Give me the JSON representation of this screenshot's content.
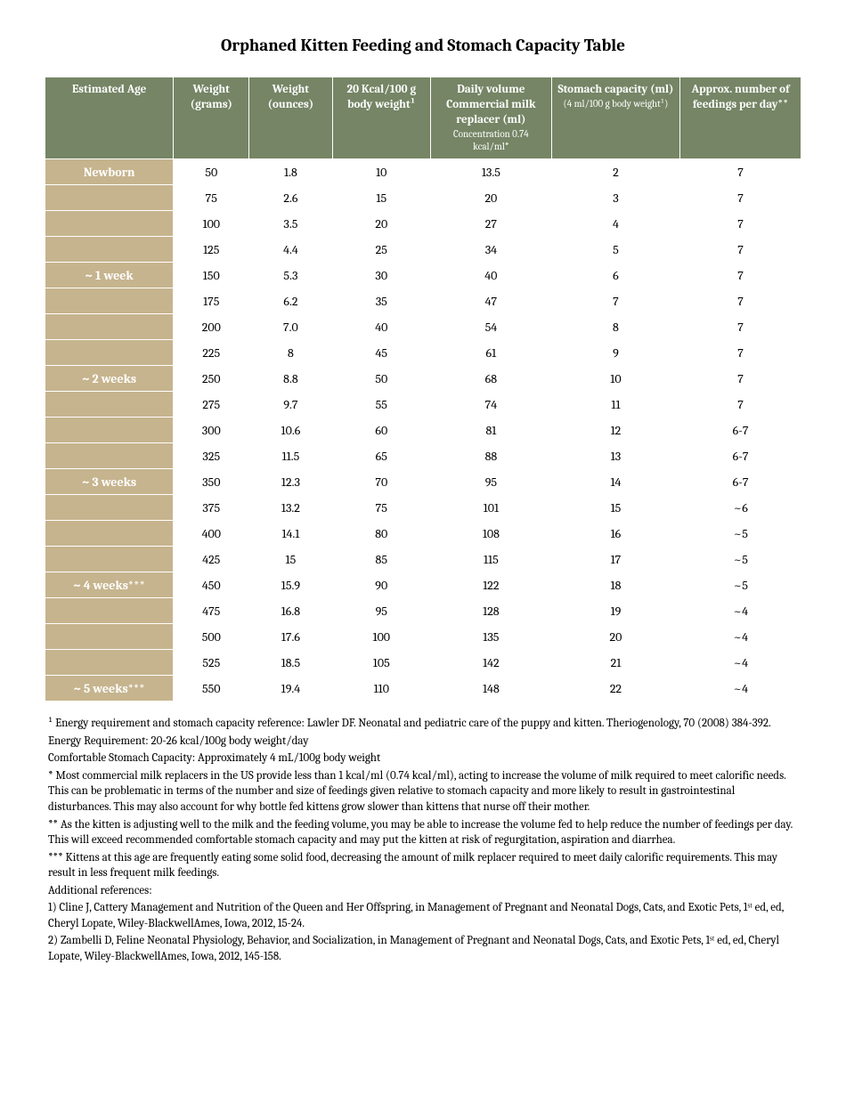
{
  "title": "Orphaned Kitten Feeding and Stomach Capacity Table",
  "colors": {
    "header_bg": "#758565",
    "header_text": "#ffffff",
    "age_bg": "#c6b48e",
    "age_text": "#ffffff",
    "body_bg": "#ffffff",
    "body_text": "#000000"
  },
  "columns": [
    {
      "key": "age",
      "label": "Estimated Age",
      "sub": ""
    },
    {
      "key": "wg",
      "label": "Weight (grams)",
      "sub": ""
    },
    {
      "key": "wo",
      "label": "Weight (ounces)",
      "sub": ""
    },
    {
      "key": "kcal",
      "label": "20 Kcal/100 g body weight¹",
      "sub": ""
    },
    {
      "key": "dv",
      "label": "Daily volume Commercial milk replacer (ml)",
      "sub": "Concentration 0.74 kcal/ml*"
    },
    {
      "key": "sc",
      "label": "Stomach capacity (ml)",
      "sub": "(4 ml/100 g body weight¹)"
    },
    {
      "key": "fd",
      "label": "Approx. number of feedings per day**",
      "sub": ""
    }
  ],
  "rows": [
    {
      "age": "Newborn",
      "wg": "50",
      "wo": "1.8",
      "kcal": "10",
      "dv": "13.5",
      "sc": "2",
      "fd": "7"
    },
    {
      "age": "",
      "wg": "75",
      "wo": "2.6",
      "kcal": "15",
      "dv": "20",
      "sc": "3",
      "fd": "7"
    },
    {
      "age": "",
      "wg": "100",
      "wo": "3.5",
      "kcal": "20",
      "dv": "27",
      "sc": "4",
      "fd": "7"
    },
    {
      "age": "",
      "wg": "125",
      "wo": "4.4",
      "kcal": "25",
      "dv": "34",
      "sc": "5",
      "fd": "7"
    },
    {
      "age": "~ 1 week",
      "wg": "150",
      "wo": "5.3",
      "kcal": "30",
      "dv": "40",
      "sc": "6",
      "fd": "7"
    },
    {
      "age": "",
      "wg": "175",
      "wo": "6.2",
      "kcal": "35",
      "dv": "47",
      "sc": "7",
      "fd": "7"
    },
    {
      "age": "",
      "wg": "200",
      "wo": "7.0",
      "kcal": "40",
      "dv": "54",
      "sc": "8",
      "fd": "7"
    },
    {
      "age": "",
      "wg": "225",
      "wo": "8",
      "kcal": "45",
      "dv": "61",
      "sc": "9",
      "fd": "7"
    },
    {
      "age": "~ 2 weeks",
      "wg": "250",
      "wo": "8.8",
      "kcal": "50",
      "dv": "68",
      "sc": "10",
      "fd": "7"
    },
    {
      "age": "",
      "wg": "275",
      "wo": "9.7",
      "kcal": "55",
      "dv": "74",
      "sc": "11",
      "fd": "7"
    },
    {
      "age": "",
      "wg": "300",
      "wo": "10.6",
      "kcal": "60",
      "dv": "81",
      "sc": "12",
      "fd": "6-7"
    },
    {
      "age": "",
      "wg": "325",
      "wo": "11.5",
      "kcal": "65",
      "dv": "88",
      "sc": "13",
      "fd": "6-7"
    },
    {
      "age": "~ 3 weeks",
      "wg": "350",
      "wo": "12.3",
      "kcal": "70",
      "dv": "95",
      "sc": "14",
      "fd": "6-7"
    },
    {
      "age": "",
      "wg": "375",
      "wo": "13.2",
      "kcal": "75",
      "dv": "101",
      "sc": "15",
      "fd": "~6"
    },
    {
      "age": "",
      "wg": "400",
      "wo": "14.1",
      "kcal": "80",
      "dv": "108",
      "sc": "16",
      "fd": "~5"
    },
    {
      "age": "",
      "wg": "425",
      "wo": "15",
      "kcal": "85",
      "dv": "115",
      "sc": "17",
      "fd": "~5"
    },
    {
      "age": "~ 4 weeks***",
      "wg": "450",
      "wo": "15.9",
      "kcal": "90",
      "dv": "122",
      "sc": "18",
      "fd": "~5"
    },
    {
      "age": "",
      "wg": "475",
      "wo": "16.8",
      "kcal": "95",
      "dv": "128",
      "sc": "19",
      "fd": "~4"
    },
    {
      "age": "",
      "wg": "500",
      "wo": "17.6",
      "kcal": "100",
      "dv": "135",
      "sc": "20",
      "fd": "~4"
    },
    {
      "age": "",
      "wg": "525",
      "wo": "18.5",
      "kcal": "105",
      "dv": "142",
      "sc": "21",
      "fd": "~4"
    },
    {
      "age": "~ 5 weeks***",
      "wg": "550",
      "wo": "19.4",
      "kcal": "110",
      "dv": "148",
      "sc": "22",
      "fd": "~4"
    }
  ],
  "notes": [
    "¹ Energy requirement and stomach capacity reference: Lawler DF. Neonatal and pediatric care of the puppy and kitten.  Theriogenology, 70 (2008) 384-392.",
    "Energy Requirement: 20-26 kcal/100g body weight/day",
    "Comfortable Stomach Capacity: Approximately 4 mL/100g body weight",
    "* Most commercial milk replacers in the US provide less than 1 kcal/ml (0.74 kcal/ml), acting to increase the volume of milk required to meet calorific needs.  This can be problematic in terms of the number and size of feedings given relative to stomach capacity and more likely to result in gastrointestinal disturbances.  This may also account for why bottle fed kittens grow slower than kittens that nurse off their mother.",
    "** As the kitten is adjusting well to the milk and the feeding volume, you may be able to increase the volume fed to help reduce the number of feedings per day.  This will exceed recommended comfortable stomach capacity and may put the kitten at risk of regurgitation, aspiration and diarrhea.",
    "*** Kittens at this age are frequently eating some solid food, decreasing the amount of milk replacer required to meet daily calorific requirements.  This may result in less frequent milk feedings.",
    "Additional references:",
    "1) Cline J, Cattery Management and Nutrition of the Queen and Her Offspring, in Management of Pregnant and Neonatal Dogs, Cats, and Exotic Pets, 1ˢᵗ ed, ed, Cheryl Lopate, Wiley-BlackwellAmes, Iowa, 2012, 15-24.",
    "2) Zambelli D, Feline Neonatal Physiology, Behavior, and Socialization, in Management of Pregnant and Neonatal Dogs, Cats, and Exotic Pets, 1ˢᵗ ed, ed, Cheryl Lopate, Wiley-BlackwellAmes, Iowa, 2012, 145-158."
  ]
}
